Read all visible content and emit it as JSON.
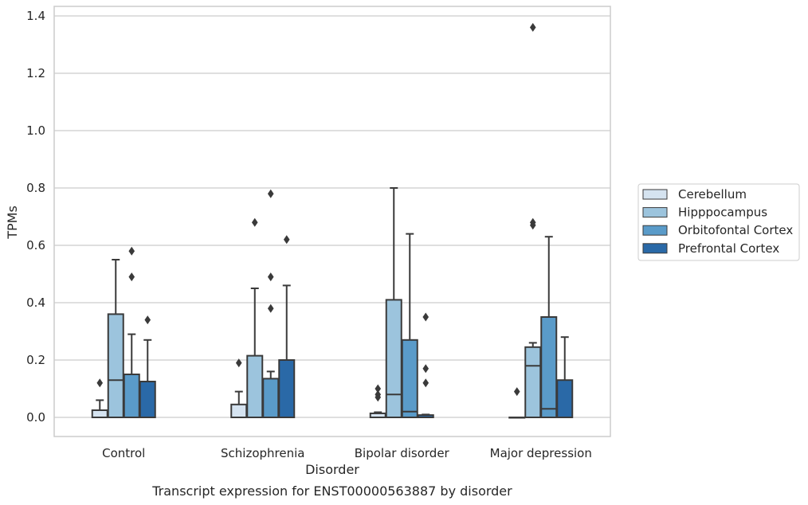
{
  "chart_data": {
    "type": "box",
    "xlabel": "Disorder",
    "ylabel": "TPMs",
    "caption": "Transcript expression for ENST00000563887 by disorder",
    "ylim": [
      -0.065,
      1.43
    ],
    "yticks": [
      "0.0",
      "0.2",
      "0.4",
      "0.6",
      "0.8",
      "1.0",
      "1.2",
      "1.4"
    ],
    "ytick_values": [
      0.0,
      0.2,
      0.4,
      0.6,
      0.8,
      1.0,
      1.2,
      1.4
    ],
    "grid": "horizontal",
    "legend_position": "right",
    "categories": [
      "Control",
      "Schizophrenia",
      "Bipolar disorder",
      "Major depression"
    ],
    "series": [
      {
        "name": "Cerebellum",
        "color": "#d5e3f0",
        "boxes": [
          {
            "q1": 0.0,
            "median": 0.0,
            "q3": 0.025,
            "whisker_low": 0.0,
            "whisker_high": 0.06,
            "outliers": [
              0.12
            ]
          },
          {
            "q1": 0.0,
            "median": 0.0,
            "q3": 0.045,
            "whisker_low": 0.0,
            "whisker_high": 0.09,
            "outliers": [
              0.19
            ]
          },
          {
            "q1": 0.0,
            "median": 0.0,
            "q3": 0.014,
            "whisker_low": 0.0,
            "whisker_high": 0.018,
            "outliers": [
              0.07,
              0.08,
              0.1
            ]
          },
          {
            "q1": 0.0,
            "median": 0.0,
            "q3": 0.0,
            "whisker_low": 0.0,
            "whisker_high": 0.0,
            "outliers": [
              0.09
            ]
          }
        ]
      },
      {
        "name": "Hipppocampus",
        "color": "#9cc4dd",
        "boxes": [
          {
            "q1": 0.0,
            "median": 0.13,
            "q3": 0.36,
            "whisker_low": 0.0,
            "whisker_high": 0.55,
            "outliers": []
          },
          {
            "q1": 0.0,
            "median": 0.0,
            "q3": 0.215,
            "whisker_low": 0.0,
            "whisker_high": 0.45,
            "outliers": [
              0.68
            ]
          },
          {
            "q1": 0.0,
            "median": 0.08,
            "q3": 0.41,
            "whisker_low": 0.0,
            "whisker_high": 0.8,
            "outliers": []
          },
          {
            "q1": 0.0,
            "median": 0.18,
            "q3": 0.245,
            "whisker_low": 0.0,
            "whisker_high": 0.26,
            "outliers": [
              0.67,
              0.68,
              1.36
            ]
          }
        ]
      },
      {
        "name": "Orbitofontal Cortex",
        "color": "#5a9bc9",
        "boxes": [
          {
            "q1": 0.0,
            "median": 0.0,
            "q3": 0.15,
            "whisker_low": 0.0,
            "whisker_high": 0.29,
            "outliers": [
              0.49,
              0.58
            ]
          },
          {
            "q1": 0.0,
            "median": 0.0,
            "q3": 0.135,
            "whisker_low": 0.0,
            "whisker_high": 0.16,
            "outliers": [
              0.38,
              0.49,
              0.78
            ]
          },
          {
            "q1": 0.0,
            "median": 0.02,
            "q3": 0.27,
            "whisker_low": 0.0,
            "whisker_high": 0.64,
            "outliers": []
          },
          {
            "q1": 0.0,
            "median": 0.03,
            "q3": 0.35,
            "whisker_low": 0.0,
            "whisker_high": 0.63,
            "outliers": []
          }
        ]
      },
      {
        "name": "Prefrontal Cortex",
        "color": "#2a69a7",
        "boxes": [
          {
            "q1": 0.0,
            "median": 0.0,
            "q3": 0.125,
            "whisker_low": 0.0,
            "whisker_high": 0.27,
            "outliers": [
              0.34
            ]
          },
          {
            "q1": 0.0,
            "median": 0.0,
            "q3": 0.2,
            "whisker_low": 0.0,
            "whisker_high": 0.46,
            "outliers": [
              0.62
            ]
          },
          {
            "q1": 0.0,
            "median": 0.0,
            "q3": 0.008,
            "whisker_low": 0.0,
            "whisker_high": 0.01,
            "outliers": [
              0.12,
              0.17,
              0.35
            ]
          },
          {
            "q1": 0.0,
            "median": 0.0,
            "q3": 0.13,
            "whisker_low": 0.0,
            "whisker_high": 0.28,
            "outliers": []
          }
        ]
      }
    ]
  }
}
